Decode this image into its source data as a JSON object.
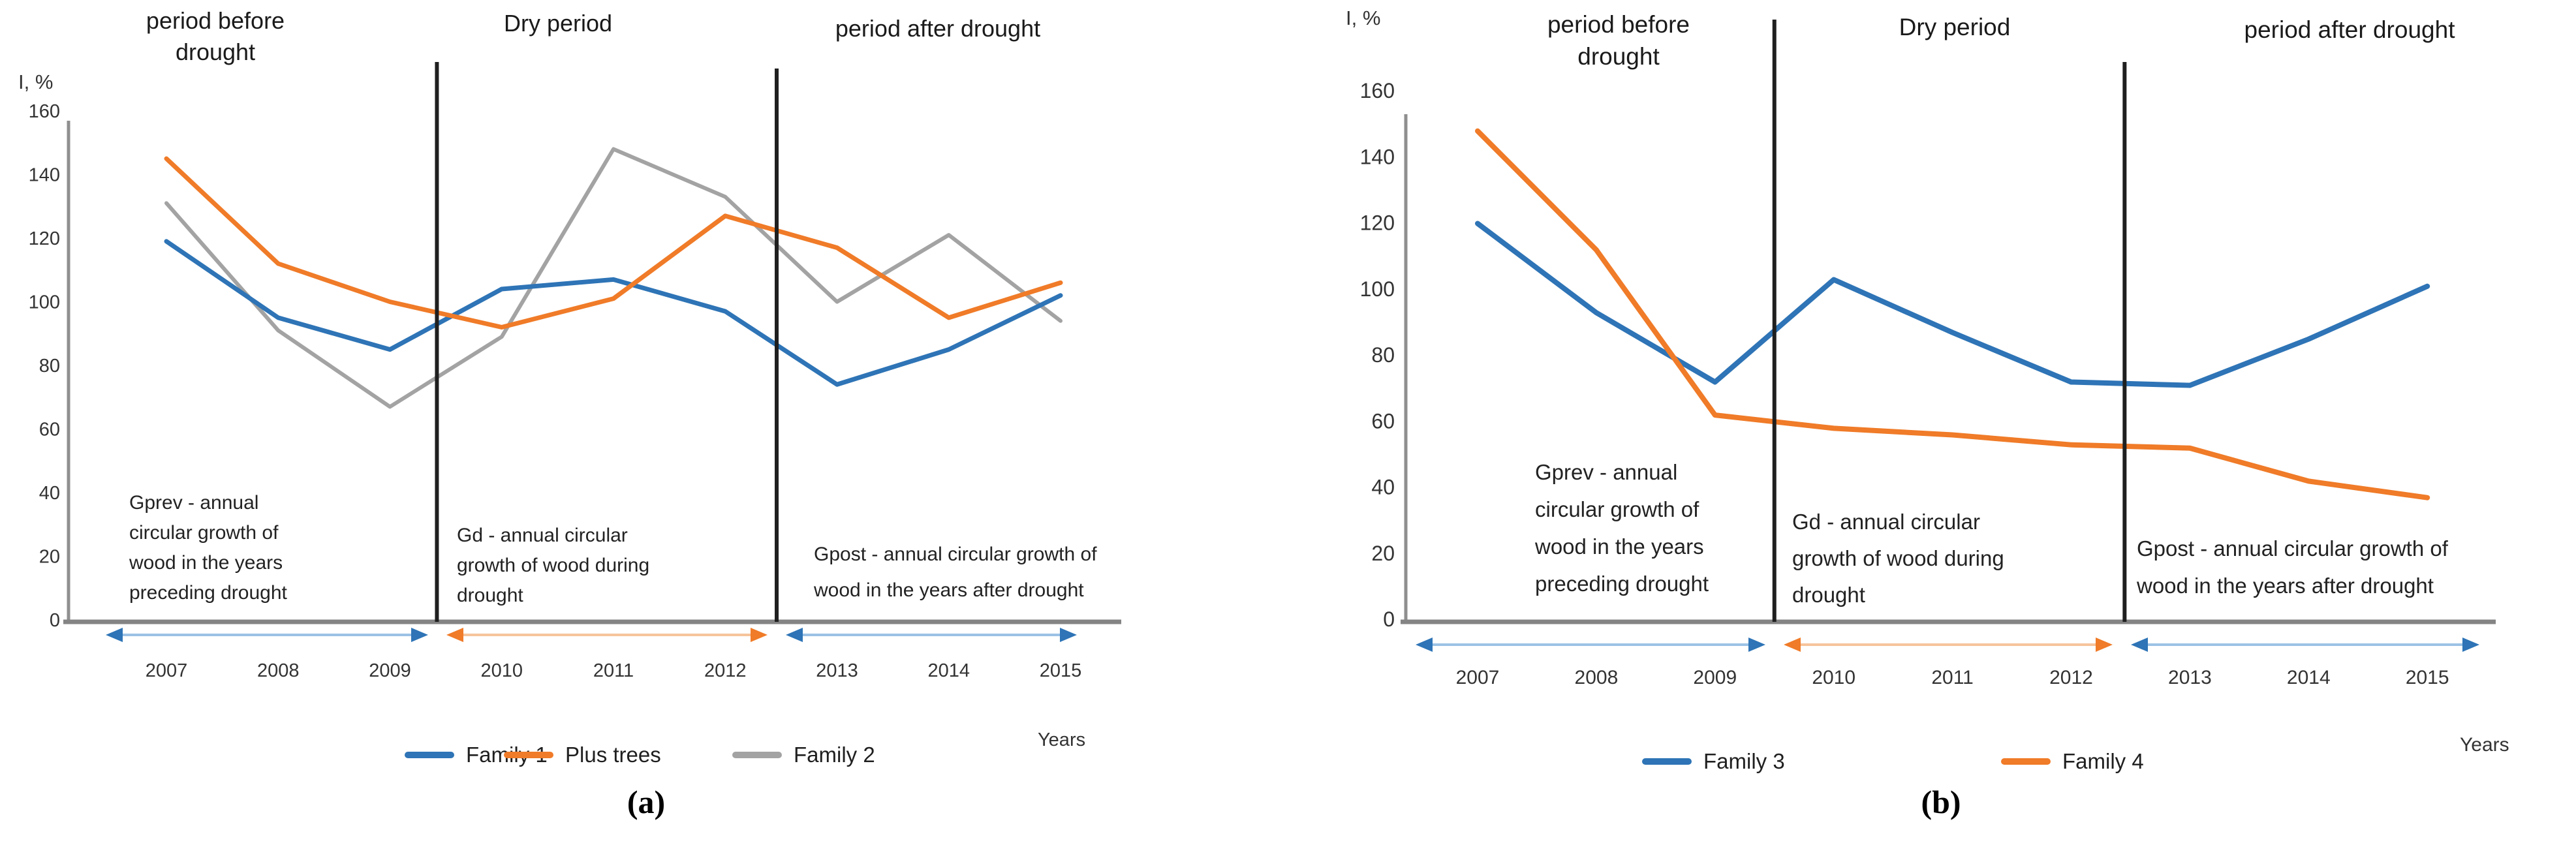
{
  "chart_data": [
    {
      "type": "line",
      "panel": "a",
      "caption": "(a)",
      "ylabel": "I, %",
      "xlabel": "Years",
      "ylim": [
        0,
        160
      ],
      "y_ticks": [
        0,
        20,
        40,
        60,
        80,
        100,
        120,
        140,
        160
      ],
      "x": [
        2007,
        2008,
        2009,
        2010,
        2011,
        2012,
        2013,
        2014,
        2015
      ],
      "grid": false,
      "legend_position": "bottom",
      "title_periods": {
        "before": [
          "period before",
          "drought"
        ],
        "during": "Dry period",
        "after": "period after drought"
      },
      "annotations": {
        "gprev": [
          "Gprev - annual",
          "circular growth of",
          "wood in the years",
          "preceding drought"
        ],
        "gd": [
          "Gd - annual circular",
          "growth of wood during",
          "drought"
        ],
        "gpost": [
          "Gpost - annual circular growth of",
          "wood in the years after drought"
        ]
      },
      "dividers_at_year": [
        2009.42,
        2012.46
      ],
      "series": [
        {
          "name": "Family 1",
          "color": "#2E74B6",
          "values": [
            119,
            95,
            85,
            104,
            107,
            97,
            74,
            85,
            102
          ]
        },
        {
          "name": "Plus trees",
          "color": "#F07B28",
          "values": [
            145,
            112,
            100,
            92,
            101,
            127,
            117,
            95,
            106
          ]
        },
        {
          "name": "Family 2",
          "color": "#A3A3A3",
          "values": [
            131,
            91,
            67,
            89,
            148,
            133,
            100,
            121,
            94
          ]
        }
      ]
    },
    {
      "type": "line",
      "panel": "b",
      "caption": "(b)",
      "ylabel": "I,  %",
      "xlabel": "Years",
      "ylim": [
        0,
        160
      ],
      "y_ticks": [
        0,
        20,
        40,
        60,
        80,
        100,
        120,
        140,
        160
      ],
      "x": [
        2007,
        2008,
        2009,
        2010,
        2011,
        2012,
        2013,
        2014,
        2015
      ],
      "grid": false,
      "legend_position": "bottom",
      "title_periods": {
        "before": [
          "period before",
          "drought"
        ],
        "during": "Dry period",
        "after": "period after drought"
      },
      "annotations": {
        "gprev": [
          "Gprev - annual",
          "circular growth of",
          "wood in the years",
          "preceding drought"
        ],
        "gd": [
          "Gd - annual circular",
          "growth of wood during",
          "drought"
        ],
        "gpost": [
          "Gpost - annual circular growth of",
          "wood in the years after drought"
        ]
      },
      "dividers_at_year": [
        2009.5,
        2012.45
      ],
      "series": [
        {
          "name": "Family 3",
          "color": "#2E74B6",
          "values": [
            120,
            93,
            72,
            103,
            87,
            72,
            71,
            85,
            101
          ]
        },
        {
          "name": "Family 4",
          "color": "#F07B28",
          "values": [
            148,
            112,
            62,
            58,
            56,
            53,
            52,
            42,
            37
          ]
        }
      ]
    }
  ]
}
